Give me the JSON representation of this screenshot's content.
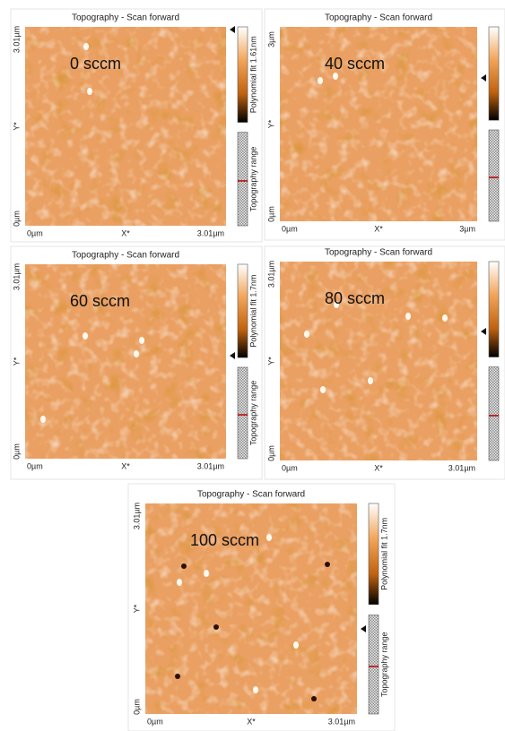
{
  "panels": [
    {
      "title": "Topography - Scan forward",
      "label": "0 sccm",
      "y_top": "3.01µm",
      "y_mid": "Y*",
      "y_bottom": "0µm",
      "x_left": "0µm",
      "x_mid": "X*",
      "x_right": "3.01µm",
      "colorbar_label": "Polynomial fit 1.61nm",
      "range_label": "Topography range"
    },
    {
      "title": "Topography - Scan forward",
      "label": "40 sccm",
      "y_top": "3µm",
      "y_mid": "Y*",
      "y_bottom": "0µm",
      "x_left": "0µm",
      "x_mid": "X*",
      "x_right": "3µm"
    },
    {
      "title": "Topography - Scan forward",
      "label": "60 sccm",
      "y_top": "3.01µm",
      "y_mid": "Y*",
      "y_bottom": "0µm",
      "x_left": "0µm",
      "x_mid": "X*",
      "x_right": "3.01µm",
      "colorbar_label": "Polynomial fit 1.7nm",
      "range_label": "Topography range"
    },
    {
      "title": "Topography - Scan forward",
      "label": "80 sccm",
      "y_top": "3.01µm",
      "y_mid": "Y*",
      "y_bottom": "0µm",
      "x_left": "0µm",
      "x_mid": "X*",
      "x_right": "3.01µm"
    },
    {
      "title": "Topography - Scan forward",
      "label": "100 sccm",
      "y_top": "3.01µm",
      "y_mid": "Y*",
      "y_bottom": "0µm",
      "x_left": "0µm",
      "x_mid": "X*",
      "x_right": "3.01µm",
      "colorbar_label": "Polynomial fit 1.7nm",
      "range_label": "Topography range"
    }
  ]
}
